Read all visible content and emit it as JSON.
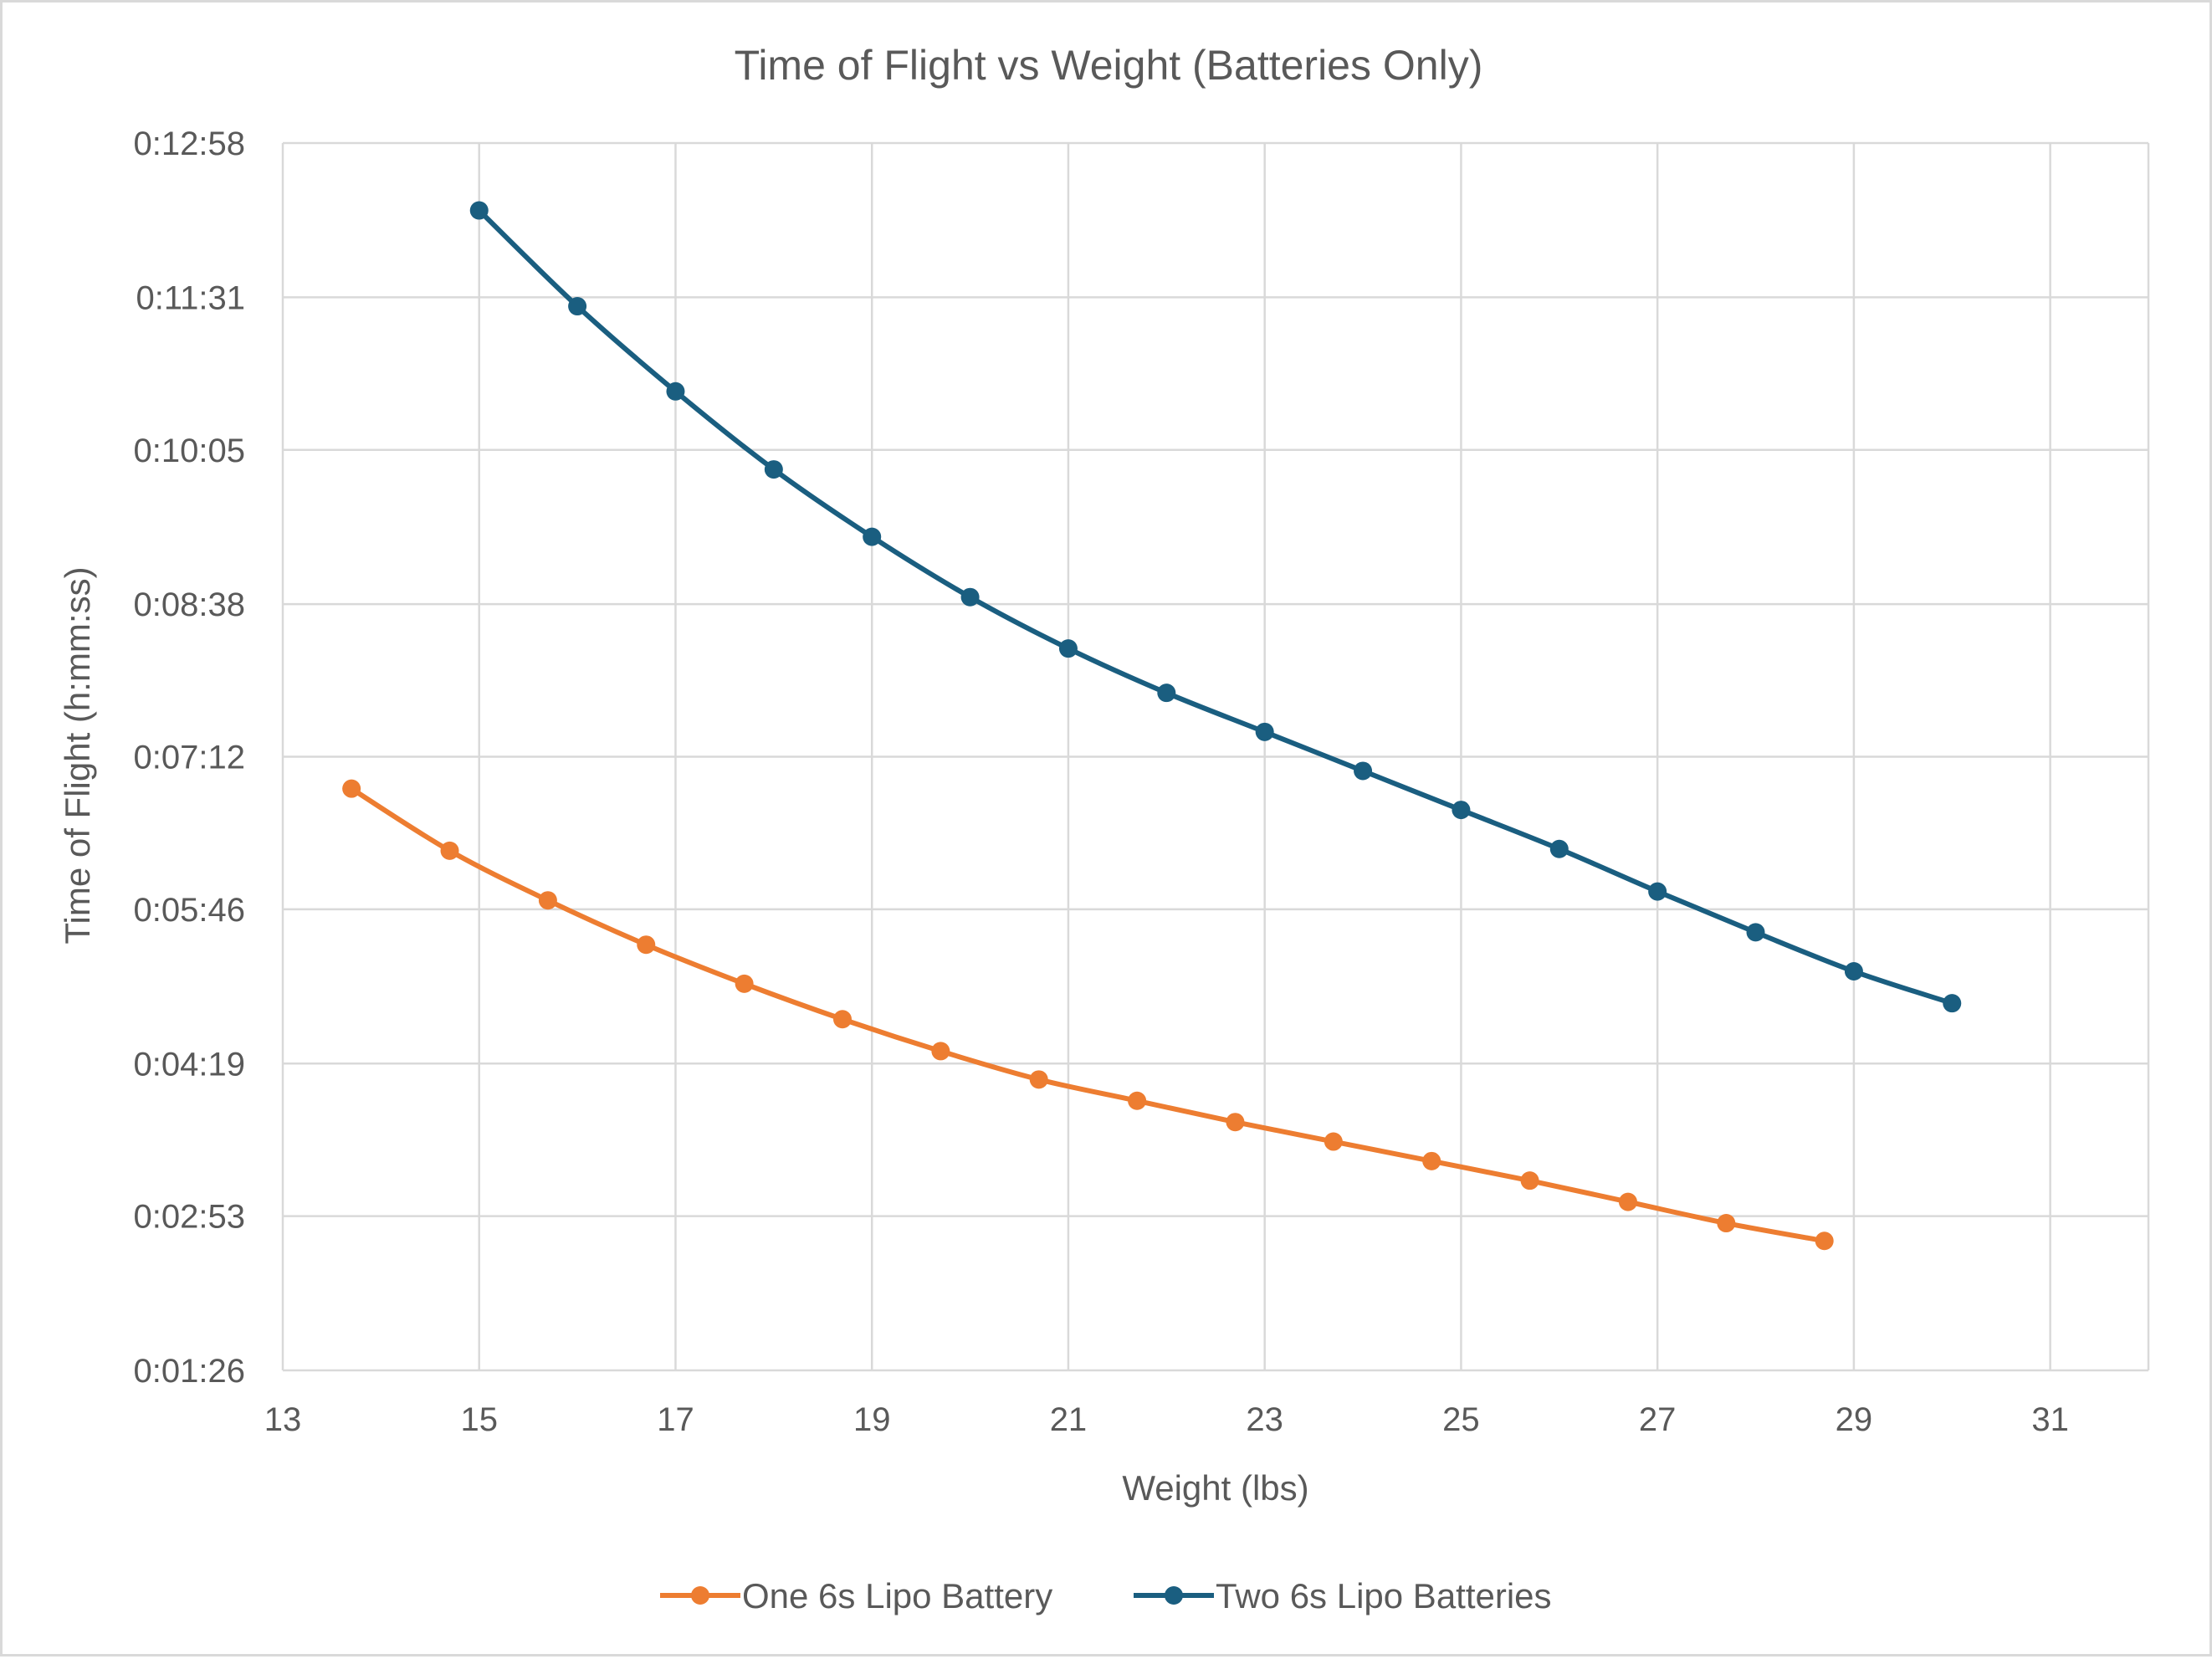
{
  "chart_data": {
    "type": "line",
    "title": "Time of Flight vs Weight (Batteries Only)",
    "xlabel": "Weight (lbs)",
    "ylabel": "Time of Flight (h:mm:ss)",
    "xlim": [
      13,
      32
    ],
    "x_ticks": [
      13,
      15,
      17,
      19,
      21,
      23,
      25,
      27,
      29,
      31
    ],
    "ylim_seconds": [
      86,
      778
    ],
    "y_ticks_seconds": [
      86,
      173,
      259,
      346,
      432,
      518,
      605,
      691,
      778
    ],
    "y_tick_labels": [
      "0:01:26",
      "0:02:53",
      "0:04:19",
      "0:05:46",
      "0:07:12",
      "0:08:38",
      "0:10:05",
      "0:11:31",
      "0:12:58"
    ],
    "grid": true,
    "legend_position": "bottom",
    "series": [
      {
        "name": "One 6s Lipo Battery",
        "color": "#ED7D31",
        "x": [
          13.7,
          14.7,
          15.7,
          16.7,
          17.7,
          18.7,
          19.7,
          20.7,
          21.7,
          22.7,
          23.7,
          24.7,
          25.7,
          26.7,
          27.7,
          28.7
        ],
        "y_seconds": [
          414,
          379,
          351,
          326,
          304,
          284,
          266,
          250,
          238,
          226,
          215,
          204,
          193,
          181,
          169,
          159
        ]
      },
      {
        "name": "Two 6s Lipo Batteries",
        "color": "#1A5E80",
        "x": [
          15,
          16,
          17,
          18,
          19,
          20,
          21,
          22,
          23,
          24,
          25,
          26,
          27,
          28,
          29,
          30
        ],
        "y_seconds": [
          740,
          686,
          638,
          594,
          556,
          522,
          493,
          468,
          446,
          424,
          402,
          380,
          356,
          333,
          311,
          293
        ]
      }
    ]
  }
}
